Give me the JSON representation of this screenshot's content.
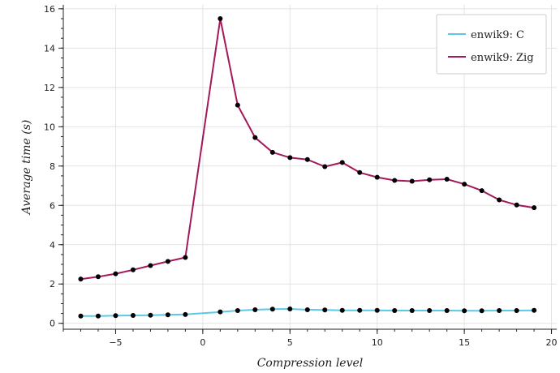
{
  "chart_data": {
    "type": "line",
    "title": "",
    "xlabel": "Compression level",
    "ylabel": "Average time (s)",
    "xlim": [
      -8,
      20.3
    ],
    "ylim": [
      -0.3,
      16.2
    ],
    "x_ticks": [
      -5,
      0,
      5,
      10,
      15,
      20
    ],
    "x_tick_labels": [
      "−5",
      "0",
      "5",
      "10",
      "15",
      "20"
    ],
    "y_ticks": [
      0,
      2,
      4,
      6,
      8,
      10,
      12,
      14,
      16
    ],
    "y_tick_labels": [
      "0",
      "2",
      "4",
      "6",
      "8",
      "10",
      "12",
      "14",
      "16"
    ],
    "grid": true,
    "legend_position": "top-right",
    "x": [
      -7,
      -6,
      -5,
      -4,
      -3,
      -2,
      -1,
      1,
      2,
      3,
      4,
      5,
      6,
      7,
      8,
      9,
      10,
      11,
      12,
      13,
      14,
      15,
      16,
      17,
      18,
      19
    ],
    "series": [
      {
        "name": "enwik9: C",
        "color": "#5bc8e6",
        "values": [
          0.37,
          0.37,
          0.39,
          0.4,
          0.41,
          0.43,
          0.45,
          0.58,
          0.65,
          0.69,
          0.72,
          0.73,
          0.69,
          0.68,
          0.66,
          0.66,
          0.66,
          0.65,
          0.65,
          0.65,
          0.65,
          0.64,
          0.64,
          0.65,
          0.65,
          0.66
        ]
      },
      {
        "name": "enwik9: Zig",
        "color": "#a3195b",
        "values": [
          2.25,
          2.37,
          2.52,
          2.72,
          2.94,
          3.15,
          3.35,
          15.5,
          11.1,
          9.45,
          8.7,
          8.43,
          8.33,
          7.97,
          8.18,
          7.67,
          7.43,
          7.27,
          7.23,
          7.3,
          7.33,
          7.08,
          6.75,
          6.28,
          6.02,
          5.88
        ]
      }
    ]
  }
}
